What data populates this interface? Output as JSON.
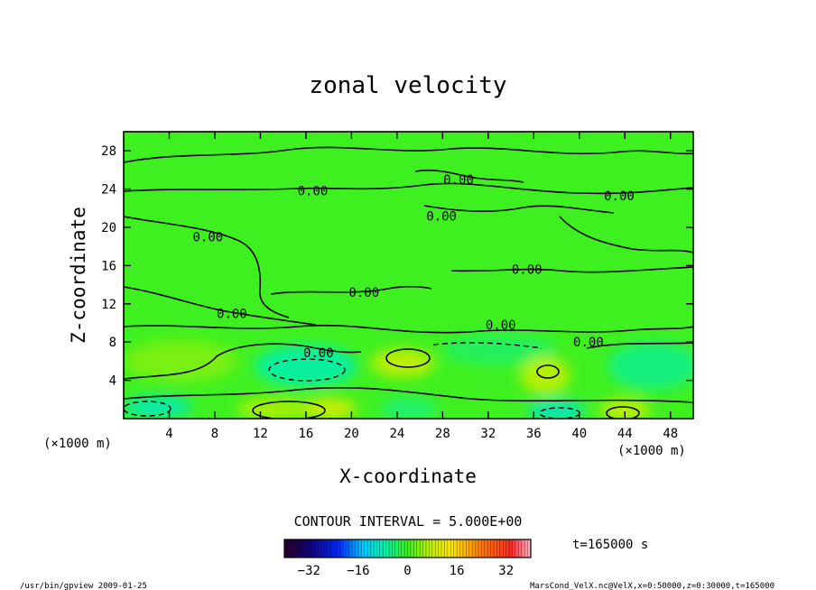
{
  "chart_data": {
    "type": "heatmap",
    "title": "zonal velocity",
    "xlabel": "X-coordinate",
    "ylabel": "Z-coordinate",
    "x_unit": "(×1000 m)",
    "y_unit": "(×1000 m)",
    "xlim": [
      0,
      50
    ],
    "ylim": [
      0,
      30
    ],
    "x_ticks": [
      4,
      8,
      12,
      16,
      20,
      24,
      28,
      32,
      36,
      40,
      44,
      48
    ],
    "y_ticks": [
      4,
      8,
      12,
      16,
      20,
      24,
      28
    ],
    "contour_interval_text": "CONTOUR INTERVAL = 5.000E+00",
    "contour_labels": [
      {
        "x": 16.6,
        "y": 23.8,
        "text": "0.00"
      },
      {
        "x": 29.4,
        "y": 25.0,
        "text": "0.00"
      },
      {
        "x": 27.9,
        "y": 21.2,
        "text": "0.00"
      },
      {
        "x": 43.5,
        "y": 23.3,
        "text": "0.00"
      },
      {
        "x": 7.4,
        "y": 19.0,
        "text": "0.00"
      },
      {
        "x": 35.4,
        "y": 15.6,
        "text": "0.00"
      },
      {
        "x": 21.1,
        "y": 13.2,
        "text": "0.00"
      },
      {
        "x": 9.5,
        "y": 11.0,
        "text": "0.00"
      },
      {
        "x": 33.1,
        "y": 9.8,
        "text": "0.00"
      },
      {
        "x": 40.8,
        "y": 8.0,
        "text": "0.00"
      },
      {
        "x": 17.1,
        "y": 6.9,
        "text": "0.00"
      }
    ],
    "field_features": [
      {
        "x": 5,
        "y": 6,
        "rx": 5,
        "ry": 2.2,
        "value": 4
      },
      {
        "x": 16,
        "y": 5.5,
        "rx": 4.5,
        "ry": 2.2,
        "value": -8
      },
      {
        "x": 24.5,
        "y": 5.8,
        "rx": 2.8,
        "ry": 1.5,
        "value": 9
      },
      {
        "x": 33,
        "y": 7.2,
        "rx": 5,
        "ry": 1.6,
        "value": -4
      },
      {
        "x": 37,
        "y": 4.5,
        "rx": 2.2,
        "ry": 2,
        "value": 8
      },
      {
        "x": 46.5,
        "y": 5.5,
        "rx": 4,
        "ry": 2.5,
        "value": -6
      },
      {
        "x": 3,
        "y": 1.2,
        "rx": 3,
        "ry": 1.2,
        "value": -9
      },
      {
        "x": 13,
        "y": 1.0,
        "rx": 3,
        "ry": 1.2,
        "value": 7
      },
      {
        "x": 18,
        "y": 1.0,
        "rx": 2.5,
        "ry": 1.2,
        "value": 10
      },
      {
        "x": 25,
        "y": 1.0,
        "rx": 2.5,
        "ry": 1.2,
        "value": -5
      },
      {
        "x": 38,
        "y": 0.8,
        "rx": 2.5,
        "ry": 1.2,
        "value": -10
      },
      {
        "x": 44,
        "y": 0.9,
        "rx": 2.2,
        "ry": 1.2,
        "value": 9
      }
    ],
    "colorbar": {
      "range": [
        -40,
        40
      ],
      "ticks": [
        -32,
        -16,
        0,
        16,
        32
      ]
    },
    "time_label": "t=165000 s",
    "footer_left": "/usr/bin/gpview  2009-01-25",
    "footer_right": "MarsCond_VelX.nc@VelX,x=0:50000,z=0:30000,t=165000"
  }
}
